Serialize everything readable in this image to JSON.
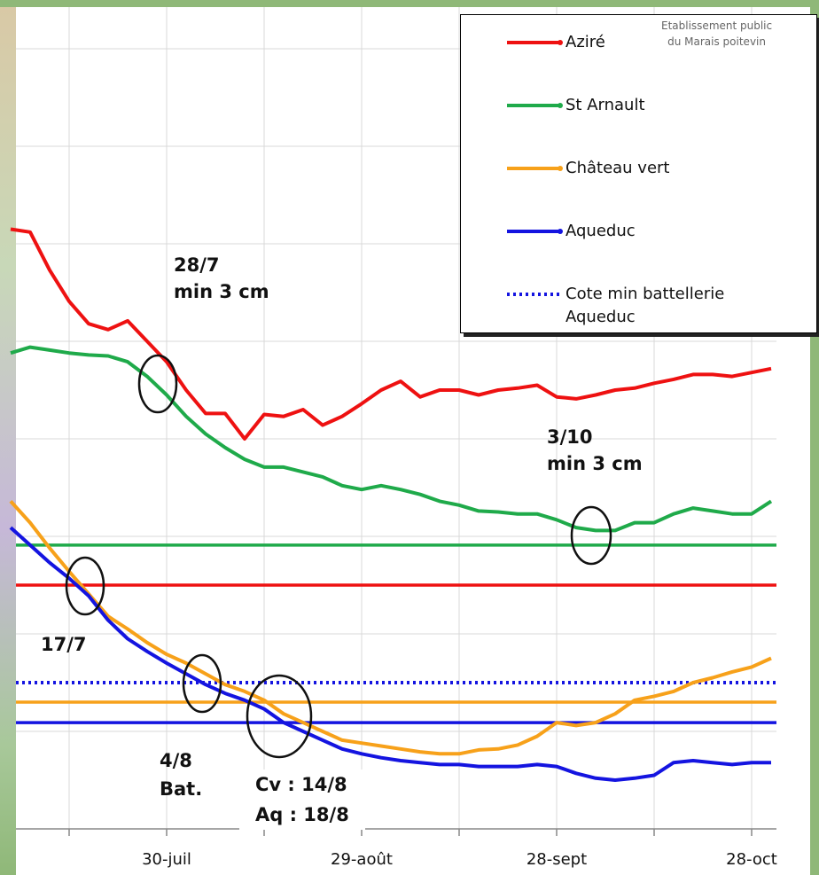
{
  "chart_data": {
    "type": "line",
    "categories": [
      null,
      null,
      null,
      null,
      null,
      null,
      null,
      null,
      "30-juil",
      null,
      null,
      null,
      null,
      null,
      null,
      null,
      null,
      null,
      "29-août",
      null,
      null,
      null,
      null,
      null,
      null,
      null,
      null,
      null,
      "28-sept",
      null,
      null,
      null,
      null,
      null,
      null,
      null,
      null,
      null,
      "28-oct",
      null
    ],
    "ylim": [
      0,
      85
    ],
    "series": [
      {
        "name": "Aziré",
        "color": "#ee1111",
        "values": [
          61.5,
          61.2,
          57.3,
          54.1,
          51.8,
          51.2,
          52.1,
          50,
          47.9,
          45,
          42.6,
          42.6,
          40,
          42.5,
          42.3,
          43,
          41.4,
          42.3,
          43.6,
          45,
          45.9,
          44.3,
          45,
          45,
          44.5,
          45,
          45.2,
          45.5,
          44.3,
          44.1,
          44.5,
          45,
          45.2,
          45.7,
          46.1,
          46.6,
          46.6,
          46.4,
          46.8,
          47.2
        ]
      },
      {
        "name": "St Arnault",
        "color": "#1faa4a",
        "values": [
          48.8,
          49.4,
          49.1,
          48.8,
          48.6,
          48.5,
          47.9,
          46.4,
          44.5,
          42.3,
          40.5,
          39.1,
          37.9,
          37.1,
          37.1,
          36.6,
          36.1,
          35.2,
          34.8,
          35.2,
          34.8,
          34.3,
          33.6,
          33.2,
          32.6,
          32.5,
          32.3,
          32.3,
          31.7,
          30.9,
          30.6,
          30.6,
          31.4,
          31.4,
          32.3,
          32.9,
          32.6,
          32.3,
          32.3,
          33.6
        ]
      },
      {
        "name": "Château vert",
        "color": "#f7a11a",
        "values": [
          33.6,
          31.4,
          28.8,
          26.4,
          24.1,
          21.8,
          20.5,
          19.1,
          17.9,
          17,
          15.9,
          14.8,
          14.1,
          13.2,
          11.8,
          10.9,
          10,
          9.1,
          8.8,
          8.5,
          8.2,
          7.9,
          7.7,
          7.7,
          8.1,
          8.2,
          8.6,
          9.5,
          10.9,
          10.6,
          10.9,
          11.8,
          13.2,
          13.6,
          14.1,
          15,
          15.5,
          16.1,
          16.6,
          17.5
        ]
      },
      {
        "name": "Aqueduc",
        "color": "#1414e0",
        "values": [
          30.9,
          29.1,
          27.3,
          25.7,
          23.9,
          21.4,
          19.5,
          18.2,
          17,
          15.9,
          14.8,
          13.9,
          13.2,
          12.3,
          10.9,
          10,
          9.1,
          8.2,
          7.7,
          7.3,
          7,
          6.8,
          6.6,
          6.6,
          6.4,
          6.4,
          6.4,
          6.6,
          6.4,
          5.7,
          5.2,
          5,
          5.2,
          5.5,
          6.8,
          7,
          6.8,
          6.6,
          6.8,
          6.8
        ]
      }
    ],
    "reference_lines": [
      {
        "name": "Cote min battellerie Aqueduc",
        "color": "#1414e0",
        "value": 15,
        "dashed": true
      },
      {
        "color": "#1faa4a",
        "value": 29.1
      },
      {
        "color": "#ee1111",
        "value": 25
      },
      {
        "color": "#f7a11a",
        "value": 13
      },
      {
        "color": "#1414e0",
        "value": 10.9
      }
    ],
    "annotations": [
      "28/7\nmin 3 cm",
      "3/10\nmin 3 cm",
      "17/7",
      "4/8\nBat.",
      "Cv : 14/8\nAq : 18/8"
    ],
    "source": "Etablissement public\ndu Marais poitevin"
  }
}
